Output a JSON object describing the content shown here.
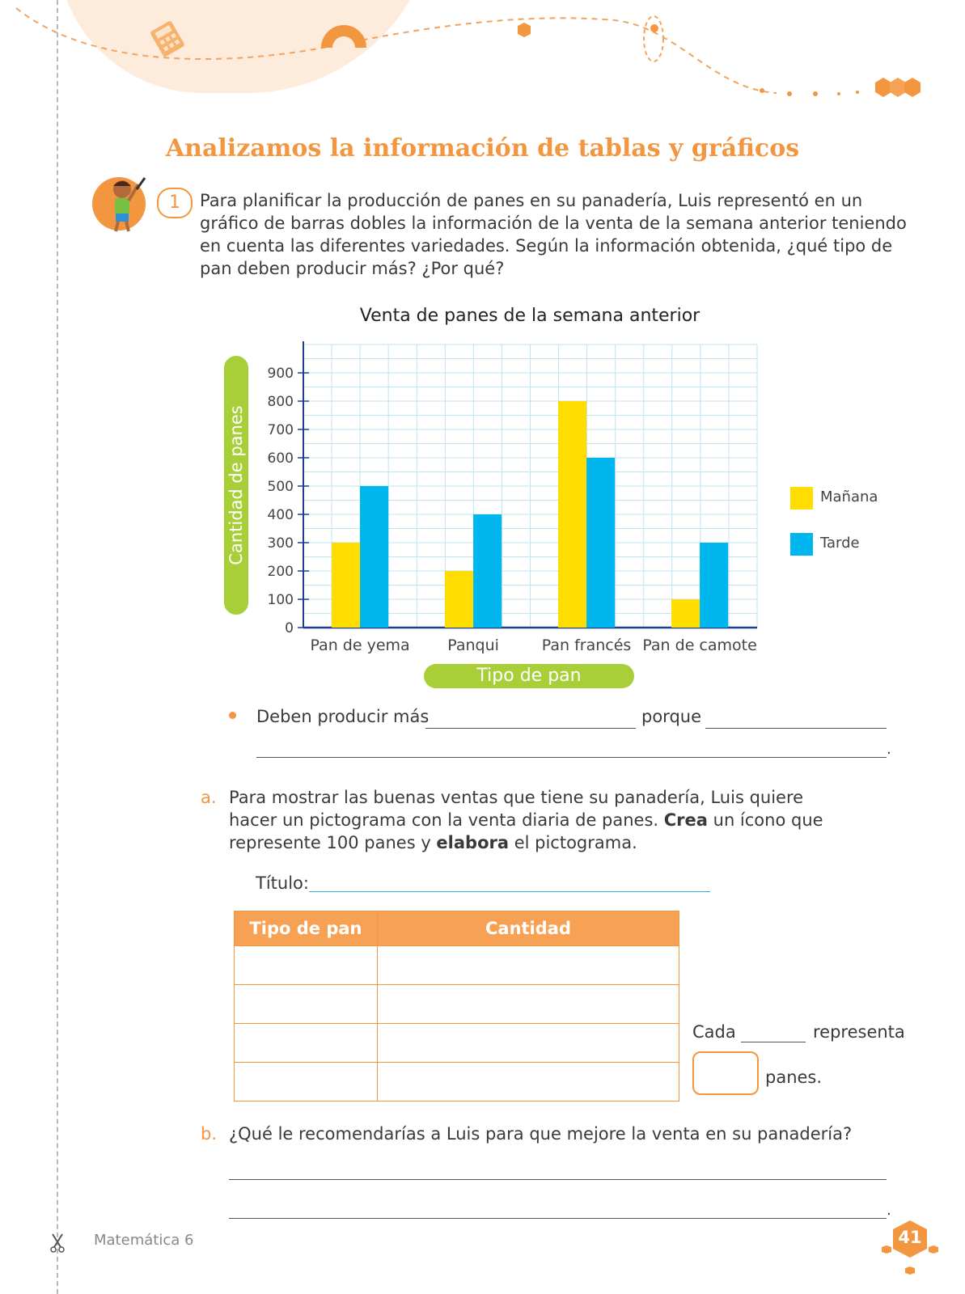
{
  "title": "Analizamos la información de tablas y gráficos",
  "problem": {
    "number": "1",
    "text": "Para planificar la producción de panes en su panadería, Luis representó en un gráfico de barras dobles la información de la venta de la semana anterior teniendo en cuenta las diferentes variedades. Según la información obtenida, ¿qué tipo de pan deben producir más? ¿Por qué?"
  },
  "chart_data": {
    "type": "bar",
    "title": "Venta de panes de la semana anterior",
    "xlabel": "Tipo de pan",
    "ylabel": "Cantidad de panes",
    "categories": [
      "Pan de yema",
      "Panqui",
      "Pan francés",
      "Pan de camote"
    ],
    "series": [
      {
        "name": "Mañana",
        "values": [
          300,
          200,
          800,
          100
        ],
        "color": "#ffdd00"
      },
      {
        "name": "Tarde",
        "values": [
          500,
          400,
          600,
          300
        ],
        "color": "#00b6ee"
      }
    ],
    "yticks": [
      "0",
      "100",
      "200",
      "300",
      "400",
      "500",
      "600",
      "700",
      "800",
      "900"
    ],
    "ylim": [
      0,
      1000
    ],
    "grid": true,
    "legend": "right"
  },
  "answer_line": {
    "prefix": "Deben producir más",
    "middle": "porque",
    "end_mark": "."
  },
  "part_a": {
    "letter": "a.",
    "text_1": "Para mostrar las buenas ventas que tiene su panadería, Luis quiere hacer un pictograma con la venta diaria de panes. ",
    "bold_1": "Crea",
    "text_2": " un ícono que represente 100 panes y ",
    "bold_2": "elabora",
    "text_3": " el pictograma.",
    "titulo_label": "Título:",
    "table_headers": [
      "Tipo de pan",
      "Cantidad"
    ],
    "cada": "Cada",
    "representa": "representa",
    "panes": "panes."
  },
  "part_b": {
    "letter": "b.",
    "question": "¿Qué le recomendarías a Luis para que mejore la venta en su panadería?",
    "end_mark": "."
  },
  "footer": {
    "book": "Matemática 6",
    "page": "41"
  },
  "colors": {
    "accent": "#f29640",
    "green": "#a9cf38",
    "morning": "#ffdd00",
    "afternoon": "#00b6ee"
  }
}
